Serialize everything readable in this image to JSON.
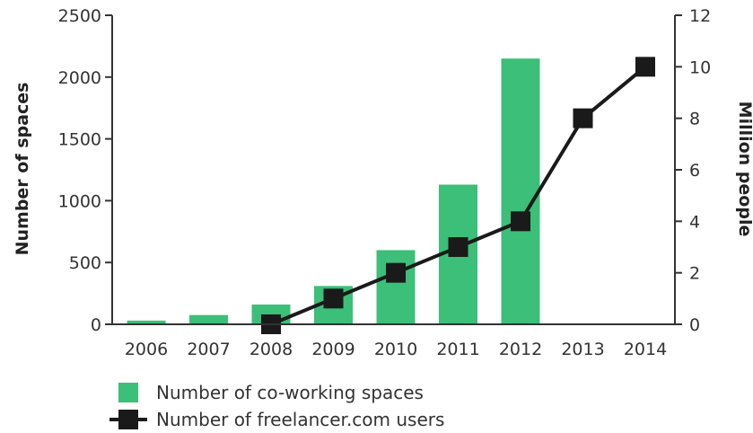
{
  "chart_data": {
    "type": "bar",
    "categories": [
      "2006",
      "2007",
      "2008",
      "2009",
      "2010",
      "2011",
      "2012",
      "2013",
      "2014"
    ],
    "series": [
      {
        "name": "Number of co-working spaces",
        "type": "bar",
        "axis": "left",
        "color": "#3cbf78",
        "values": [
          30,
          75,
          160,
          310,
          600,
          1130,
          2150,
          null,
          null
        ]
      },
      {
        "name": "Number of freelancer.com users",
        "type": "line",
        "axis": "right",
        "color": "#1a1a1a",
        "values": [
          null,
          null,
          0,
          1,
          2,
          3,
          4,
          8,
          10
        ]
      }
    ],
    "ylabel": "Number of spaces",
    "ylim": [
      0,
      2500
    ],
    "yticks": [
      0,
      500,
      1000,
      1500,
      2000,
      2500
    ],
    "y2label": "Million people",
    "y2lim": [
      0,
      12
    ],
    "y2ticks": [
      0,
      2,
      4,
      6,
      8,
      10,
      12
    ],
    "grid": false,
    "legend_position": "bottom-left"
  }
}
